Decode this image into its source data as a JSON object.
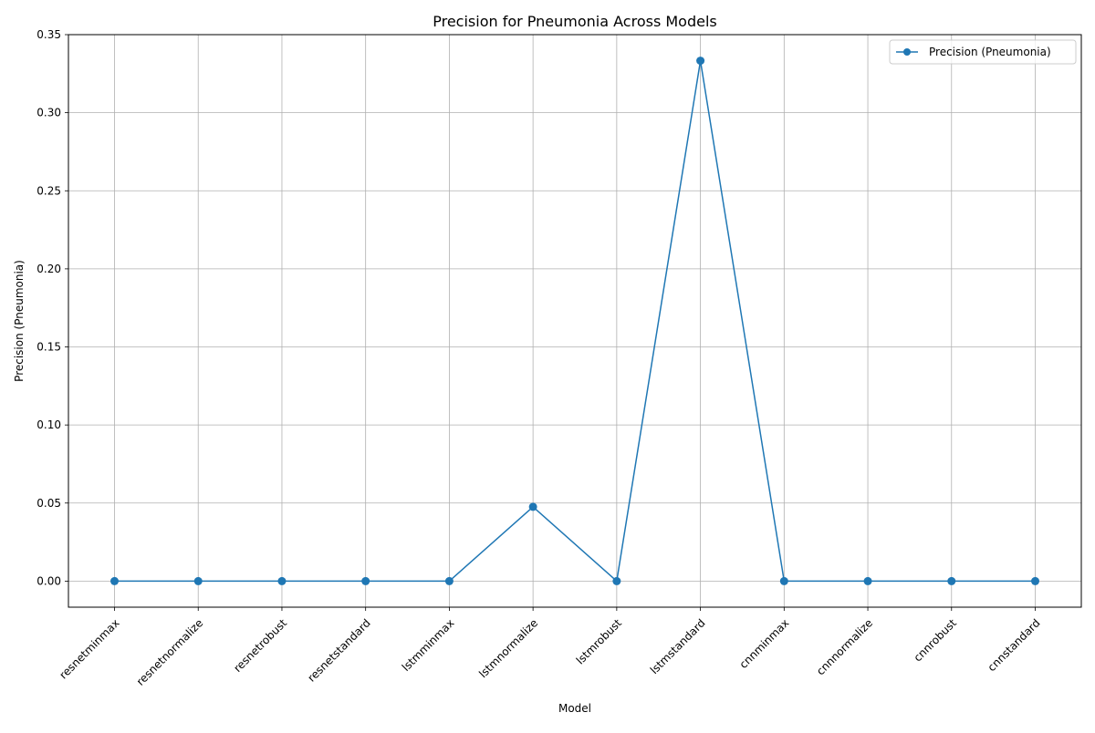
{
  "chart_data": {
    "type": "line",
    "title": "Precision for Pneumonia Across Models",
    "xlabel": "Model",
    "ylabel": "Precision (Pneumonia)",
    "categories": [
      "resnetminmax",
      "resnetnormalize",
      "resnetrobust",
      "resnetstandard",
      "lstmminmax",
      "lstmnormalize",
      "lstmrobust",
      "lstmstandard",
      "cnnminmax",
      "cnnnormalize",
      "cnnrobust",
      "cnnstandard"
    ],
    "series": [
      {
        "name": "Precision (Pneumonia)",
        "values": [
          0.0,
          0.0,
          0.0,
          0.0,
          0.0,
          0.0476,
          0.0,
          0.3333,
          0.0,
          0.0,
          0.0,
          0.0
        ],
        "color": "#1f77b4",
        "marker": "circle"
      }
    ],
    "ylim": [
      -0.0167,
      0.35
    ],
    "yticks": [
      "0.00",
      "0.05",
      "0.10",
      "0.15",
      "0.20",
      "0.25",
      "0.30",
      "0.35"
    ],
    "grid": true,
    "legend_position": "top-right",
    "xtick_rotation": 45
  }
}
